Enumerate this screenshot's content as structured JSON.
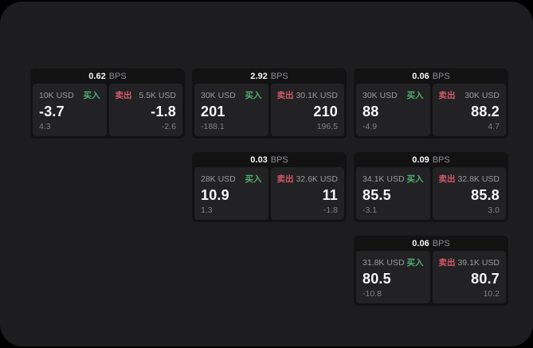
{
  "labels": {
    "bps": "BPS",
    "buy": "买入",
    "sell": "卖出"
  },
  "colors": {
    "buy_green": "#4daf6e",
    "sell_red": "#d05a68",
    "surface": "#1d1d1f",
    "card": "#121212",
    "tile": "#222224"
  },
  "cards": [
    {
      "bps": "0.62",
      "col": 1,
      "row": 1,
      "buy": {
        "amount": "10K USD",
        "price": "-3.7",
        "delta": "4.3"
      },
      "sell": {
        "amount": "5.5K USD",
        "price": "-1.8",
        "delta": "-2.6"
      }
    },
    {
      "bps": "2.92",
      "col": 2,
      "row": 1,
      "buy": {
        "amount": "30K USD",
        "price": "201",
        "delta": "-188.1"
      },
      "sell": {
        "amount": "30.1K USD",
        "price": "210",
        "delta": "196.5"
      }
    },
    {
      "bps": "0.06",
      "col": 3,
      "row": 1,
      "buy": {
        "amount": "30K USD",
        "price": "88",
        "delta": "-4.9"
      },
      "sell": {
        "amount": "30K USD",
        "price": "88.2",
        "delta": "4.7"
      }
    },
    {
      "bps": "0.03",
      "col": 2,
      "row": 2,
      "buy": {
        "amount": "28K USD",
        "price": "10.9",
        "delta": "1.3"
      },
      "sell": {
        "amount": "32.6K USD",
        "price": "11",
        "delta": "-1.8"
      }
    },
    {
      "bps": "0.09",
      "col": 3,
      "row": 2,
      "buy": {
        "amount": "34.1K USD",
        "price": "85.5",
        "delta": "-3.1"
      },
      "sell": {
        "amount": "32.8K USD",
        "price": "85.8",
        "delta": "3.0"
      }
    },
    {
      "bps": "0.06",
      "col": 3,
      "row": 3,
      "buy": {
        "amount": "31.8K USD",
        "price": "80.5",
        "delta": "-10.8"
      },
      "sell": {
        "amount": "39.1K USD",
        "price": "80.7",
        "delta": "10.2"
      }
    }
  ]
}
